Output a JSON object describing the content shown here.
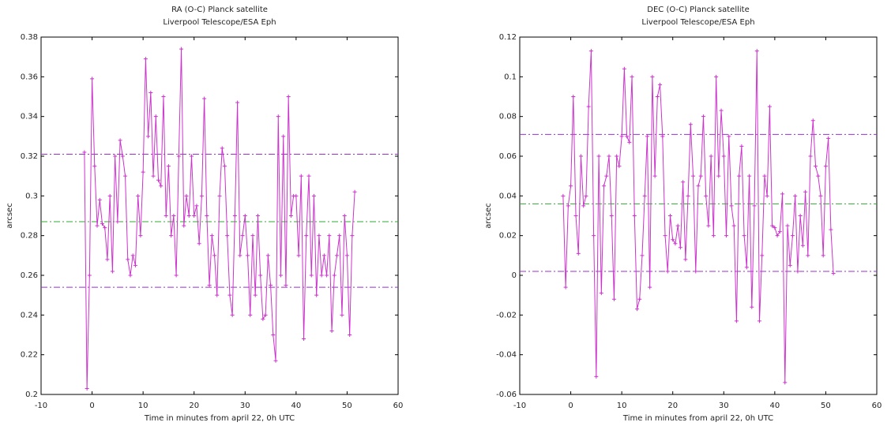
{
  "chart_data": [
    {
      "type": "line",
      "title": "RA (O-C) Planck satellite",
      "subtitle": "Liverpool Telescope/ESA Eph",
      "xlabel": "Time in minutes from april 22, 0h UTC",
      "ylabel": "arcsec",
      "color": "#cc33cc",
      "marker": "+",
      "x": [
        -1.5,
        -1,
        -0.5,
        0,
        0.5,
        1,
        1.5,
        2,
        2.5,
        3,
        3.5,
        4,
        4.5,
        5,
        5.5,
        6,
        6.5,
        7,
        7.5,
        8,
        8.5,
        9,
        9.5,
        10,
        10.5,
        11,
        11.5,
        12,
        12.5,
        13,
        13.5,
        14,
        14.5,
        15,
        15.5,
        16,
        16.5,
        17,
        17.5,
        18,
        18.5,
        19,
        19.5,
        20,
        20.5,
        21,
        21.5,
        22,
        22.5,
        23,
        23.5,
        24,
        24.5,
        25,
        25.5,
        26,
        26.5,
        27,
        27.5,
        28,
        28.5,
        29,
        29.5,
        30,
        30.5,
        31,
        31.5,
        32,
        32.5,
        33,
        33.5,
        34,
        34.5,
        35,
        35.5,
        36,
        36.5,
        37,
        37.5,
        38,
        38.5,
        39,
        39.5,
        40,
        40.5,
        41,
        41.5,
        42,
        42.5,
        43,
        43.5,
        44,
        44.5,
        45,
        45.5,
        46,
        46.5,
        47,
        47.5,
        48,
        48.5,
        49,
        49.5,
        50,
        50.5,
        51,
        51.5
      ],
      "values": [
        0.322,
        0.203,
        0.26,
        0.359,
        0.315,
        0.285,
        0.298,
        0.286,
        0.284,
        0.268,
        0.3,
        0.262,
        0.32,
        0.287,
        0.328,
        0.32,
        0.31,
        0.268,
        0.26,
        0.27,
        0.265,
        0.3,
        0.28,
        0.312,
        0.369,
        0.33,
        0.352,
        0.31,
        0.34,
        0.308,
        0.305,
        0.35,
        0.29,
        0.315,
        0.28,
        0.29,
        0.26,
        0.32,
        0.374,
        0.285,
        0.3,
        0.29,
        0.32,
        0.29,
        0.295,
        0.276,
        0.3,
        0.349,
        0.29,
        0.255,
        0.28,
        0.27,
        0.25,
        0.3,
        0.324,
        0.315,
        0.28,
        0.25,
        0.24,
        0.29,
        0.347,
        0.27,
        0.28,
        0.29,
        0.27,
        0.24,
        0.28,
        0.25,
        0.29,
        0.26,
        0.238,
        0.24,
        0.27,
        0.255,
        0.23,
        0.217,
        0.34,
        0.26,
        0.33,
        0.255,
        0.35,
        0.29,
        0.3,
        0.3,
        0.27,
        0.31,
        0.228,
        0.28,
        0.31,
        0.26,
        0.3,
        0.25,
        0.28,
        0.26,
        0.27,
        0.26,
        0.28,
        0.232,
        0.26,
        0.27,
        0.28,
        0.24,
        0.29,
        0.27,
        0.23,
        0.28,
        0.302
      ],
      "hlines": [
        {
          "value": 0.321,
          "color": "#9933cc"
        },
        {
          "value": 0.287,
          "color": "#33aa33"
        },
        {
          "value": 0.254,
          "color": "#9933cc"
        }
      ],
      "xlim": [
        -10,
        60
      ],
      "xticks": [
        -10,
        0,
        10,
        20,
        30,
        40,
        50,
        60
      ],
      "ylim": [
        0.2,
        0.38
      ],
      "yticks": [
        0.2,
        0.22,
        0.24,
        0.26,
        0.28,
        0.3,
        0.32,
        0.34,
        0.36,
        0.38
      ]
    },
    {
      "type": "line",
      "title": "DEC (O-C) Planck satellite",
      "subtitle": "Liverpool Telescope/ESA Eph",
      "xlabel": "Time in minutes from april 22, 0h UTC",
      "ylabel": "arcsec",
      "color": "#cc33cc",
      "marker": "+",
      "x": [
        -1.5,
        -1,
        -0.5,
        0,
        0.5,
        1,
        1.5,
        2,
        2.5,
        3,
        3.5,
        4,
        4.5,
        5,
        5.5,
        6,
        6.5,
        7,
        7.5,
        8,
        8.5,
        9,
        9.5,
        10,
        10.5,
        11,
        11.5,
        12,
        12.5,
        13,
        13.5,
        14,
        14.5,
        15,
        15.5,
        16,
        16.5,
        17,
        17.5,
        18,
        18.5,
        19,
        19.5,
        20,
        20.5,
        21,
        21.5,
        22,
        22.5,
        23,
        23.5,
        24,
        24.5,
        25,
        25.5,
        26,
        26.5,
        27,
        27.5,
        28,
        28.5,
        29,
        29.5,
        30,
        30.5,
        31,
        31.5,
        32,
        32.5,
        33,
        33.5,
        34,
        34.5,
        35,
        35.5,
        36,
        36.5,
        37,
        37.5,
        38,
        38.5,
        39,
        39.5,
        40,
        40.5,
        41,
        41.5,
        42,
        42.5,
        43,
        43.5,
        44,
        44.5,
        45,
        45.5,
        46,
        46.5,
        47,
        47.5,
        48,
        48.5,
        49,
        49.5,
        50,
        50.5,
        51,
        51.5
      ],
      "values": [
        0.04,
        -0.006,
        0.035,
        0.045,
        0.09,
        0.03,
        0.011,
        0.06,
        0.035,
        0.04,
        0.085,
        0.113,
        0.02,
        -0.051,
        0.06,
        -0.009,
        0.045,
        0.05,
        0.06,
        0.03,
        -0.012,
        0.06,
        0.055,
        0.07,
        0.104,
        0.07,
        0.067,
        0.1,
        0.03,
        -0.017,
        -0.012,
        0.01,
        0.04,
        0.07,
        -0.006,
        0.1,
        0.05,
        0.09,
        0.096,
        0.07,
        0.02,
        0.002,
        0.03,
        0.018,
        0.016,
        0.025,
        0.014,
        0.047,
        0.008,
        0.04,
        0.076,
        0.05,
        0.002,
        0.045,
        0.05,
        0.08,
        0.04,
        0.025,
        0.06,
        0.02,
        0.1,
        0.05,
        0.083,
        0.06,
        0.02,
        0.07,
        0.035,
        0.025,
        -0.023,
        0.05,
        0.065,
        0.02,
        0.004,
        0.05,
        -0.016,
        0.035,
        0.113,
        -0.023,
        0.01,
        0.05,
        0.04,
        0.085,
        0.025,
        0.024,
        0.02,
        0.022,
        0.041,
        -0.054,
        0.025,
        0.005,
        0.02,
        0.04,
        0.002,
        0.03,
        0.015,
        0.042,
        0.01,
        0.06,
        0.078,
        0.055,
        0.05,
        0.04,
        0.01,
        0.055,
        0.069,
        0.023,
        0.001
      ],
      "hlines": [
        {
          "value": 0.071,
          "color": "#9933cc"
        },
        {
          "value": 0.036,
          "color": "#33aa33"
        },
        {
          "value": 0.002,
          "color": "#9933cc"
        }
      ],
      "xlim": [
        -10,
        60
      ],
      "xticks": [
        -10,
        0,
        10,
        20,
        30,
        40,
        50,
        60
      ],
      "ylim": [
        -0.06,
        0.12
      ],
      "yticks": [
        -0.06,
        -0.04,
        -0.02,
        0,
        0.02,
        0.04,
        0.06,
        0.08,
        0.1,
        0.12
      ]
    }
  ]
}
